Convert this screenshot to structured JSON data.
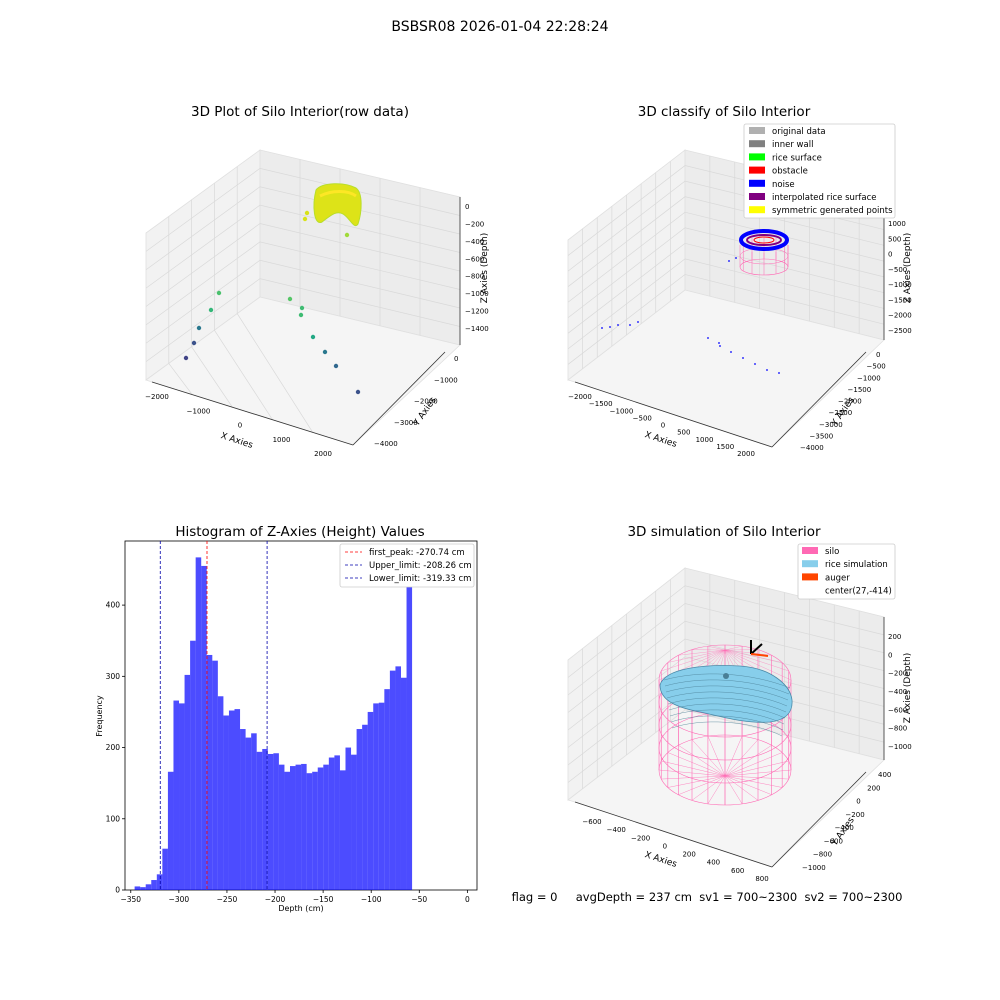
{
  "suptitle": "BSBSR08 2026-01-04 22:28:24",
  "footer": "flag = 0     avgDepth = 237 cm  sv1 = 700~2300  sv2 = 700~2300",
  "chart_data": [
    {
      "type": "scatter",
      "title": "3D Plot of Silo Interior(row data)",
      "xlabel": "X Axies",
      "ylabel": "Y Axies",
      "zlabel": "Z Axies (Depth)",
      "x_ticks": [
        "−2000",
        "−1000",
        "0",
        "1000",
        "2000"
      ],
      "y_ticks": [
        "0",
        "−1000",
        "−2000",
        "−3000",
        "−4000"
      ],
      "z_ticks": [
        "0",
        "−200",
        "−400",
        "−600",
        "−800",
        "−1000",
        "−1200",
        "−1400"
      ],
      "colormap": "viridis by depth",
      "points_note": "dense yellow cluster near top, sparse points toward bottom"
    },
    {
      "type": "scatter",
      "title": "3D classify of Silo Interior",
      "xlabel": "X Axies",
      "ylabel": "Y Axies",
      "zlabel": "Z Axies (Depth)",
      "x_ticks": [
        "−2000",
        "−1500",
        "−1000",
        "−500",
        "0",
        "500",
        "1000",
        "1500",
        "2000"
      ],
      "y_ticks": [
        "0",
        "−500",
        "−1000",
        "−1500",
        "−2000",
        "−2500",
        "−3000",
        "−3500",
        "−4000"
      ],
      "z_ticks": [
        "1000",
        "500",
        "0",
        "−500",
        "−1000",
        "−1500",
        "−2000",
        "−2500"
      ],
      "z_top_partial": "100",
      "legend": [
        {
          "label": "original data",
          "color": "#b0b0b0"
        },
        {
          "label": "inner wall",
          "color": "#808080"
        },
        {
          "label": "rice surface",
          "color": "#00ff00"
        },
        {
          "label": "obstacle",
          "color": "#ff0000"
        },
        {
          "label": "noise",
          "color": "#0000ff"
        },
        {
          "label": "interpolated rice surface",
          "color": "#800080"
        },
        {
          "label": "symmetric generated points",
          "color": "#ffff00"
        }
      ]
    },
    {
      "type": "bar",
      "title": "Histogram of Z-Axies (Height) Values",
      "xlabel": "Depth (cm)",
      "ylabel": "Frequency",
      "xlim": [
        -356,
        10
      ],
      "ylim": [
        0,
        490
      ],
      "x_ticks": [
        -350,
        -300,
        -250,
        -200,
        -150,
        -100,
        -50,
        0
      ],
      "y_ticks": [
        0,
        100,
        200,
        300,
        400
      ],
      "bin_start": -346,
      "bin_width": 5.77,
      "values": [
        5,
        4,
        8,
        14,
        22,
        58,
        166,
        266,
        262,
        302,
        350,
        467,
        455,
        330,
        322,
        272,
        245,
        252,
        254,
        226,
        214,
        220,
        194,
        198,
        191,
        192,
        176,
        166,
        174,
        176,
        177,
        164,
        166,
        172,
        176,
        186,
        189,
        168,
        200,
        190,
        226,
        232,
        250,
        262,
        263,
        282,
        308,
        314,
        298,
        432
      ],
      "bar_color": "#0000ff",
      "lines": [
        {
          "label": "first_peak: -270.74 cm",
          "x": -270.74,
          "color": "#ff0000"
        },
        {
          "label": "Upper_limit: -208.26 cm",
          "x": -208.26,
          "color": "#0000aa"
        },
        {
          "label": "Lower_limit: -319.33 cm",
          "x": -319.33,
          "color": "#0000aa"
        }
      ]
    },
    {
      "type": "surface",
      "title": "3D simulation of Silo Interior",
      "xlabel": "X Axies",
      "ylabel": "Y Axies",
      "zlabel": "Z Axies (Depth)",
      "x_ticks": [
        "−600",
        "−400",
        "−200",
        "0",
        "200",
        "400",
        "600",
        "800"
      ],
      "y_ticks": [
        "400",
        "200",
        "0",
        "−200",
        "−400",
        "−600",
        "−800",
        "−1000"
      ],
      "z_ticks": [
        "200",
        "0",
        "−200",
        "−400",
        "−600",
        "−800",
        "−1000"
      ],
      "legend": [
        {
          "label": "silo",
          "color": "#ff69b4"
        },
        {
          "label": "rice simulation",
          "color": "#87ceeb"
        },
        {
          "label": "auger",
          "color": "#ff4500"
        },
        {
          "label": "center(27,-414)",
          "color": ""
        }
      ]
    }
  ]
}
